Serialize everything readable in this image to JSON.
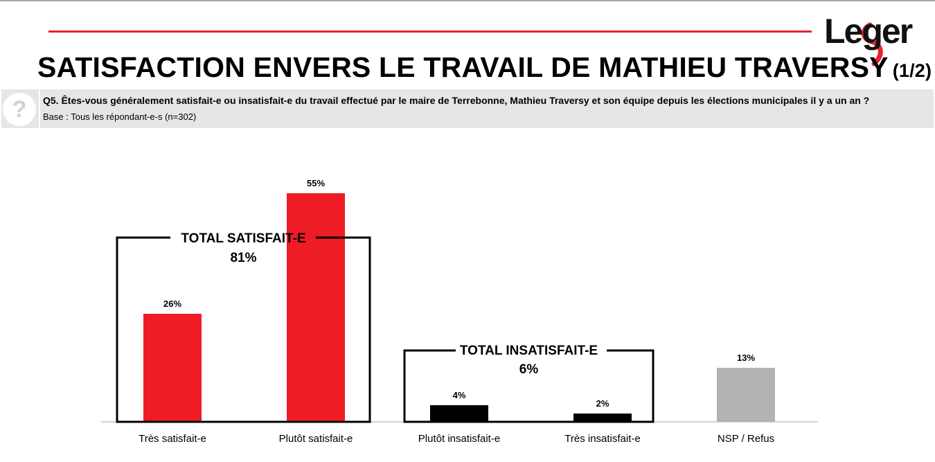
{
  "header": {
    "brand": "Leger",
    "brand_color": "#e5252a",
    "title": "SATISFACTION ENVERS LE TRAVAIL DE MATHIEU TRAVERSY",
    "title_part": "(1/2)"
  },
  "question": {
    "icon": "question-mark-icon",
    "text": "Q5. Êtes-vous généralement satisfait-e ou insatisfait-e du travail effectué par le maire de Terrebonne, Mathieu Traversy et son équipe depuis les élections municipales il y a un an ?",
    "base": "Base : Tous les répondant-e-s (n=302)"
  },
  "chart_data": {
    "type": "bar",
    "categories": [
      "Très satisfait-e",
      "Plutôt satisfait-e",
      "Plutôt insatisfait-e",
      "Très insatisfait-e",
      "NSP /  Refus"
    ],
    "values": [
      26,
      55,
      4,
      2,
      13
    ],
    "value_labels": [
      "26%",
      "55%",
      "4%",
      "2%",
      "13%"
    ],
    "colors": [
      "#ee1c25",
      "#ee1c25",
      "#000000",
      "#000000",
      "#b3b3b3"
    ],
    "ylim": [
      0,
      60
    ],
    "grid": false,
    "groups": [
      {
        "label": "TOTAL SATISFAIT-E",
        "value": "81%",
        "categories": [
          0,
          1
        ]
      },
      {
        "label": "TOTAL INSATISFAIT-E",
        "value": "6%",
        "categories": [
          2,
          3
        ]
      }
    ]
  }
}
